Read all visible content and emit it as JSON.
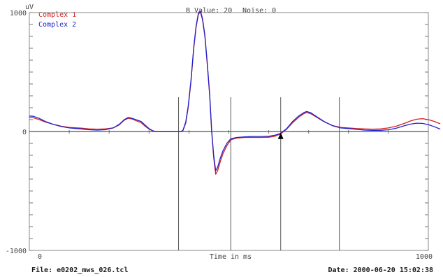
{
  "header": {
    "b_value_text": "B Value: 20",
    "noise_text": "Noise: 0"
  },
  "footer": {
    "file_text": "File: e0202_mws_026.tcl",
    "date_text": "Date: 2000-06-20 15:02:38"
  },
  "chart_data": {
    "type": "line",
    "ylabel": "uV",
    "xlabel": "Time in ms",
    "xlim": [
      0,
      1000
    ],
    "ylim": [
      -1000,
      1000
    ],
    "x_tick_labels": [
      "0",
      "1000"
    ],
    "y_tick_labels": [
      "1000",
      "0",
      "-1000"
    ],
    "grid": false,
    "legend_position": "top-left",
    "vertical_markers": [
      374,
      505,
      630,
      777
    ],
    "marker_point": {
      "x": 630,
      "y": -40
    },
    "series": [
      {
        "name": "Complex 1",
        "color": "#d62020",
        "points": [
          [
            0,
            120
          ],
          [
            10,
            115
          ],
          [
            25,
            100
          ],
          [
            40,
            80
          ],
          [
            60,
            60
          ],
          [
            80,
            45
          ],
          [
            100,
            35
          ],
          [
            130,
            28
          ],
          [
            150,
            22
          ],
          [
            170,
            20
          ],
          [
            190,
            22
          ],
          [
            210,
            30
          ],
          [
            225,
            55
          ],
          [
            238,
            95
          ],
          [
            248,
            112
          ],
          [
            258,
            105
          ],
          [
            268,
            90
          ],
          [
            280,
            75
          ],
          [
            290,
            45
          ],
          [
            300,
            20
          ],
          [
            310,
            5
          ],
          [
            318,
            0
          ],
          [
            380,
            0
          ],
          [
            385,
            8
          ],
          [
            392,
            70
          ],
          [
            398,
            200
          ],
          [
            405,
            420
          ],
          [
            412,
            700
          ],
          [
            418,
            880
          ],
          [
            424,
            990
          ],
          [
            429,
            1000
          ],
          [
            434,
            940
          ],
          [
            440,
            800
          ],
          [
            446,
            560
          ],
          [
            452,
            300
          ],
          [
            457,
            0
          ],
          [
            462,
            -220
          ],
          [
            467,
            -360
          ],
          [
            472,
            -330
          ],
          [
            478,
            -260
          ],
          [
            485,
            -190
          ],
          [
            495,
            -120
          ],
          [
            505,
            -70
          ],
          [
            520,
            -55
          ],
          [
            540,
            -50
          ],
          [
            560,
            -50
          ],
          [
            580,
            -50
          ],
          [
            600,
            -48
          ],
          [
            615,
            -40
          ],
          [
            630,
            -20
          ],
          [
            645,
            20
          ],
          [
            660,
            75
          ],
          [
            675,
            120
          ],
          [
            688,
            150
          ],
          [
            695,
            160
          ],
          [
            705,
            150
          ],
          [
            720,
            120
          ],
          [
            740,
            80
          ],
          [
            760,
            50
          ],
          [
            780,
            35
          ],
          [
            800,
            30
          ],
          [
            820,
            25
          ],
          [
            840,
            22
          ],
          [
            860,
            20
          ],
          [
            880,
            22
          ],
          [
            900,
            30
          ],
          [
            920,
            45
          ],
          [
            940,
            68
          ],
          [
            955,
            88
          ],
          [
            970,
            103
          ],
          [
            985,
            108
          ],
          [
            1000,
            100
          ],
          [
            1015,
            85
          ],
          [
            1030,
            65
          ]
        ]
      },
      {
        "name": "Complex 2",
        "color": "#2020d0",
        "points": [
          [
            0,
            130
          ],
          [
            10,
            128
          ],
          [
            25,
            110
          ],
          [
            40,
            85
          ],
          [
            60,
            60
          ],
          [
            80,
            42
          ],
          [
            100,
            30
          ],
          [
            130,
            22
          ],
          [
            150,
            15
          ],
          [
            170,
            12
          ],
          [
            190,
            15
          ],
          [
            210,
            30
          ],
          [
            225,
            60
          ],
          [
            238,
            100
          ],
          [
            248,
            118
          ],
          [
            258,
            110
          ],
          [
            268,
            98
          ],
          [
            280,
            85
          ],
          [
            290,
            55
          ],
          [
            300,
            25
          ],
          [
            310,
            5
          ],
          [
            318,
            0
          ],
          [
            380,
            0
          ],
          [
            385,
            10
          ],
          [
            392,
            80
          ],
          [
            398,
            210
          ],
          [
            405,
            430
          ],
          [
            412,
            710
          ],
          [
            418,
            890
          ],
          [
            424,
            1000
          ],
          [
            429,
            1010
          ],
          [
            434,
            950
          ],
          [
            440,
            810
          ],
          [
            446,
            570
          ],
          [
            452,
            310
          ],
          [
            457,
            10
          ],
          [
            462,
            -200
          ],
          [
            467,
            -330
          ],
          [
            472,
            -300
          ],
          [
            478,
            -230
          ],
          [
            485,
            -165
          ],
          [
            495,
            -100
          ],
          [
            505,
            -60
          ],
          [
            520,
            -50
          ],
          [
            540,
            -45
          ],
          [
            560,
            -42
          ],
          [
            580,
            -42
          ],
          [
            600,
            -40
          ],
          [
            615,
            -32
          ],
          [
            630,
            -15
          ],
          [
            645,
            25
          ],
          [
            660,
            85
          ],
          [
            675,
            130
          ],
          [
            688,
            158
          ],
          [
            695,
            168
          ],
          [
            705,
            158
          ],
          [
            720,
            125
          ],
          [
            740,
            82
          ],
          [
            760,
            48
          ],
          [
            780,
            30
          ],
          [
            800,
            25
          ],
          [
            820,
            18
          ],
          [
            840,
            12
          ],
          [
            860,
            10
          ],
          [
            880,
            10
          ],
          [
            900,
            15
          ],
          [
            920,
            28
          ],
          [
            940,
            48
          ],
          [
            955,
            62
          ],
          [
            970,
            70
          ],
          [
            985,
            68
          ],
          [
            1000,
            58
          ],
          [
            1015,
            40
          ],
          [
            1030,
            20
          ]
        ]
      }
    ]
  }
}
